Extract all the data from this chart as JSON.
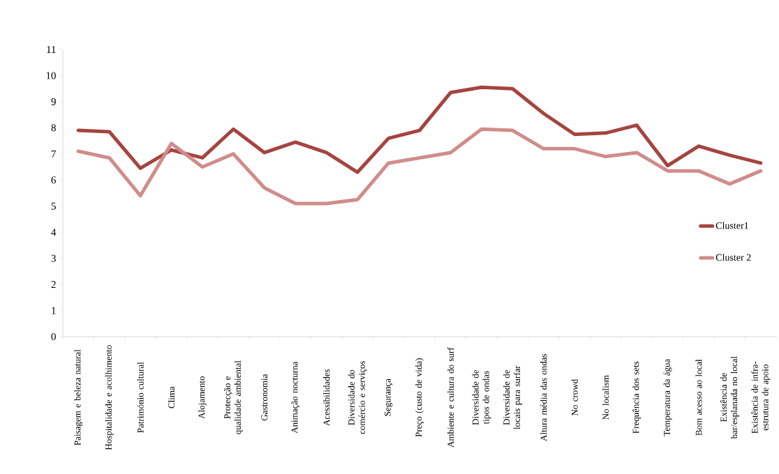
{
  "chart_data": {
    "type": "line",
    "categories": [
      "Paisagem e beleza natural",
      "Hospitalidade e acolhimento",
      "Património cultural",
      "Clima",
      "Alojamento",
      "Protecção e qualidade ambiental",
      "Gastronomia",
      "Animação nocturna",
      "Acessibilidades",
      "Diversidade do comércio e serviços",
      "Segurança",
      "Preço (custo de vida)",
      "Ambiente e cultura do surf",
      "Diversidade de tipos de ondas",
      "Diversidade de locais para surfar",
      "Altura média das ondas",
      "No crowd",
      "No localism",
      "Frequência dos sets",
      "Temperatura da água",
      "Bom acesso ao local",
      "Existência de bar/esplanada no local",
      "Existência de infra-estrutura de apoio"
    ],
    "series": [
      {
        "name": "Cluster1",
        "color": "#a5443f",
        "values": [
          7.9,
          7.85,
          6.45,
          7.15,
          6.85,
          7.95,
          7.05,
          7.45,
          7.05,
          6.3,
          7.6,
          7.9,
          9.35,
          9.55,
          9.5,
          8.55,
          7.75,
          7.8,
          8.1,
          6.55,
          7.3,
          6.95,
          6.65
        ]
      },
      {
        "name": "Cluster 2",
        "color": "#d08c8a",
        "values": [
          7.1,
          6.85,
          5.4,
          7.4,
          6.5,
          7.0,
          5.7,
          5.1,
          5.1,
          5.25,
          6.65,
          6.85,
          7.05,
          7.95,
          7.9,
          7.2,
          7.2,
          6.9,
          7.05,
          6.35,
          6.35,
          5.85,
          6.35
        ]
      }
    ],
    "ylim": [
      0,
      11
    ],
    "yticks": [
      0,
      1,
      2,
      3,
      4,
      5,
      6,
      7,
      8,
      9,
      10,
      11
    ],
    "grid": false,
    "legend": "right",
    "marker": "none",
    "line_style": "solid"
  }
}
